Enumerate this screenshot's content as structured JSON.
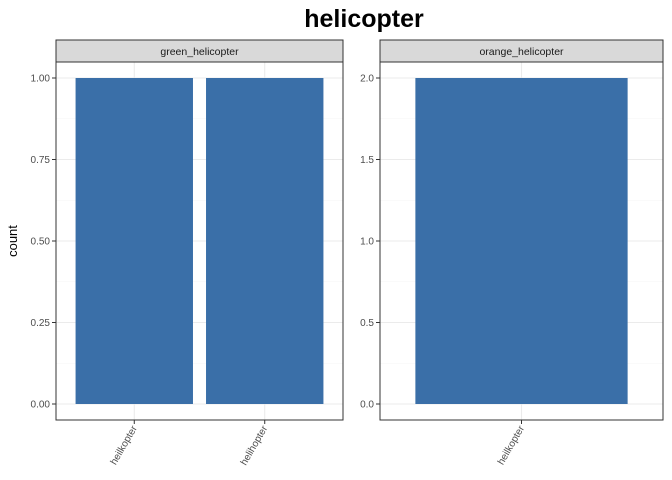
{
  "chart_data": {
    "type": "bar",
    "title": "helicopter",
    "ylabel": "count",
    "xlabel": "",
    "colors": {
      "bar": "#3A6FA8",
      "strip_bg": "#D9D9D9",
      "grid_major": "#EBEBEB",
      "grid_minor": "#F5F5F5",
      "panel_border": "#333333"
    },
    "grid": true,
    "legend": "none",
    "facets": [
      {
        "name": "green_helicopter",
        "categories": [
          "heilkopter",
          "helihopter"
        ],
        "values": [
          1,
          1
        ],
        "ylim": [
          0,
          1
        ],
        "yticks": [
          "0.00",
          "0.25",
          "0.50",
          "0.75",
          "1.00"
        ]
      },
      {
        "name": "orange_helicopter",
        "categories": [
          "heilkopter"
        ],
        "values": [
          2
        ],
        "ylim": [
          0,
          2
        ],
        "yticks": [
          "0.0",
          "0.5",
          "1.0",
          "1.5",
          "2.0"
        ]
      }
    ]
  }
}
